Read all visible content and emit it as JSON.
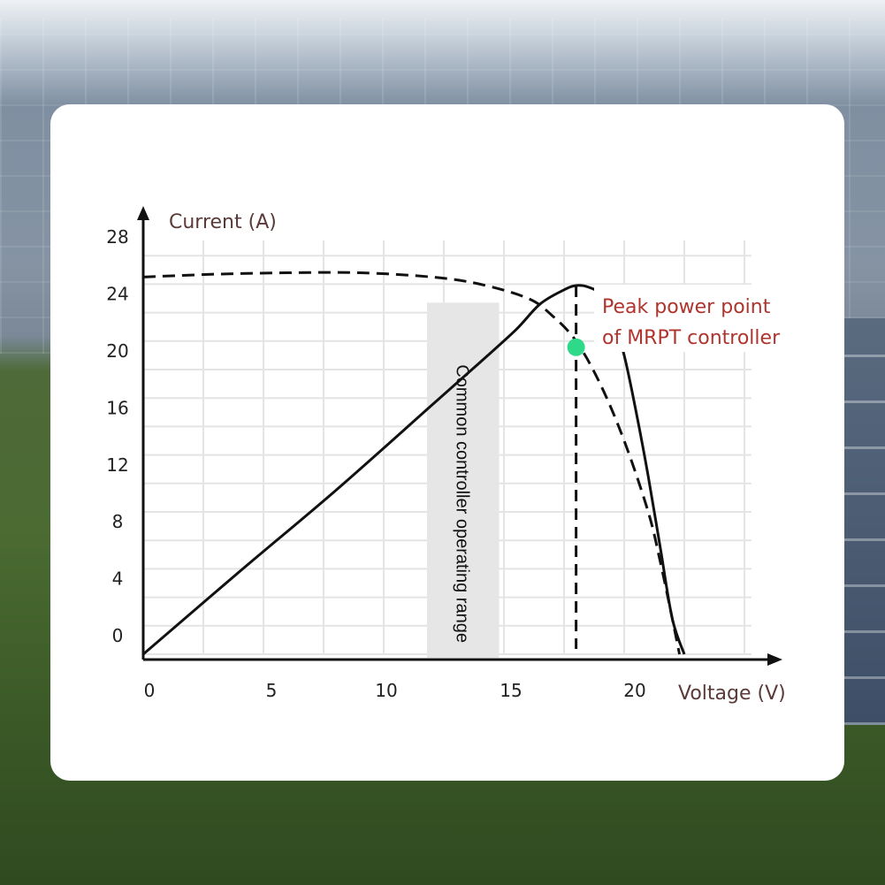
{
  "chart_data": {
    "type": "line",
    "xlabel": "Voltage (V)",
    "ylabel": "Current (A)",
    "xlim": [
      0,
      25
    ],
    "ylim": [
      0,
      28
    ],
    "xticks": [
      0,
      5,
      10,
      15,
      20
    ],
    "yticks": [
      0,
      4,
      8,
      12,
      16,
      20,
      24,
      28
    ],
    "grid": true,
    "series": [
      {
        "style": "solid",
        "x": [
          0,
          4,
          8,
          12,
          14,
          15.5,
          16.5,
          17.5,
          18,
          18.5,
          19,
          19.5,
          20,
          20.5,
          21,
          21.5,
          22,
          22.5
        ],
        "values": [
          0,
          5.8,
          11.5,
          17.5,
          20.5,
          22.8,
          24.6,
          25.6,
          25.9,
          25.8,
          25.3,
          23.8,
          21.0,
          17.0,
          12.5,
          7.5,
          2.5,
          0
        ]
      },
      {
        "style": "dashed",
        "x": [
          0,
          3,
          6,
          9,
          12,
          14,
          16,
          17,
          18,
          19,
          20,
          21,
          21.5,
          22,
          22.3
        ],
        "values": [
          26.5,
          26.7,
          26.8,
          26.8,
          26.5,
          26.0,
          25.0,
          23.8,
          22.0,
          19.0,
          15.0,
          10.0,
          6.5,
          2.5,
          0
        ]
      }
    ],
    "band": {
      "x_range": [
        11.8,
        14.8
      ],
      "label": "Common controller operating range"
    },
    "marker": {
      "x": 18.0,
      "y": 22.0,
      "color": "#2fd98a"
    },
    "vline_x": 18.0,
    "annotation": {
      "line1": "Peak power point",
      "line2": "of MRPT controller"
    }
  }
}
